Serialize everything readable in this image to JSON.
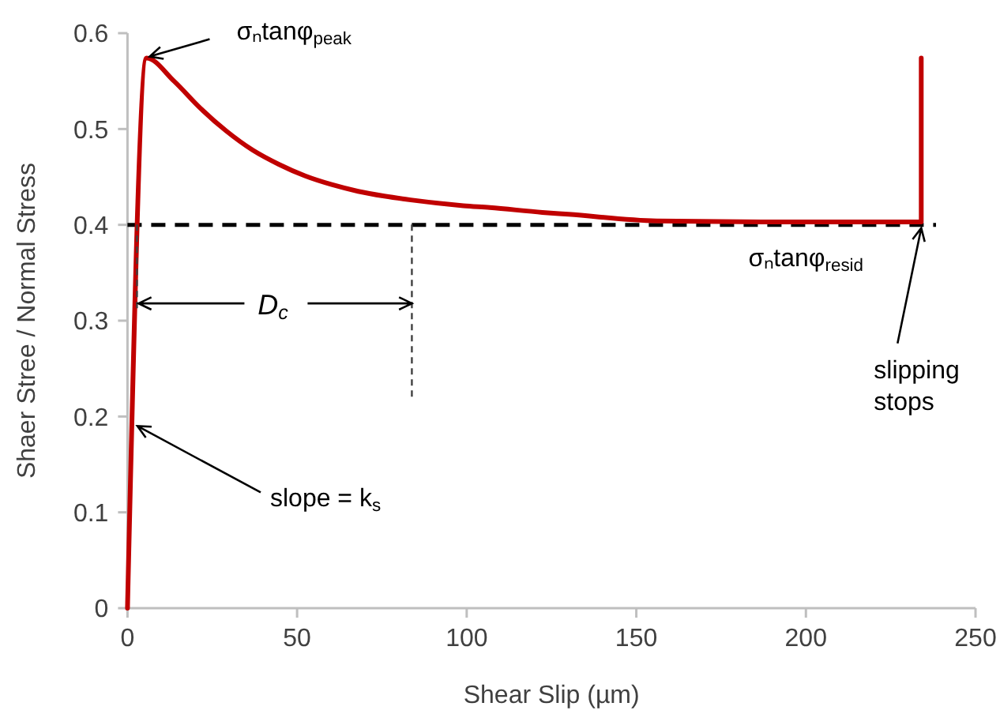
{
  "chart_data": {
    "type": "line",
    "xlabel": "Shear Slip (µm)",
    "ylabel": "Shaer Stree / Normal Stress",
    "xlim": [
      0,
      250
    ],
    "xticks": [
      0,
      50,
      100,
      150,
      200,
      250
    ],
    "ylim": [
      0,
      0.6
    ],
    "yticks": [
      0,
      0.1,
      0.2,
      0.3,
      0.4,
      0.5,
      0.6
    ],
    "grid": false,
    "marker": "none",
    "line_style": "solid",
    "series": [
      {
        "color": "#c00000",
        "x": [
          0,
          5.6,
          13.7,
          21.4,
          29.1,
          36.9,
          44.7,
          52.4,
          60.2,
          68,
          75.7,
          83.5,
          99,
          106.8,
          122.3,
          130,
          156,
          187,
          234,
          234
        ],
        "values": [
          0,
          0.574,
          0.55,
          0.522,
          0.498,
          0.478,
          0.463,
          0.451,
          0.442,
          0.435,
          0.43,
          0.426,
          0.42,
          0.418,
          0.413,
          0.411,
          0.404,
          0.403,
          0.403,
          0.574
        ]
      }
    ],
    "ref_lines": [
      {
        "axis": "y",
        "value": 0.4,
        "color": "#000000",
        "line_style": "dashed"
      }
    ],
    "annotations": [
      {
        "text": "σₙtanφ$_{peak}$",
        "x": 5.6,
        "y": 0.574
      },
      {
        "text": "D$_{c}$",
        "x": 2.8,
        "y": 0.318
      },
      {
        "text": "σₙtanφ$_{resid}$",
        "x": 200,
        "y": 0.4
      },
      {
        "text": "slope = k$_{s}$",
        "x": 2,
        "y": 0.19
      },
      {
        "text": "slipping stops",
        "x": 234,
        "y": 0.4
      }
    ]
  }
}
